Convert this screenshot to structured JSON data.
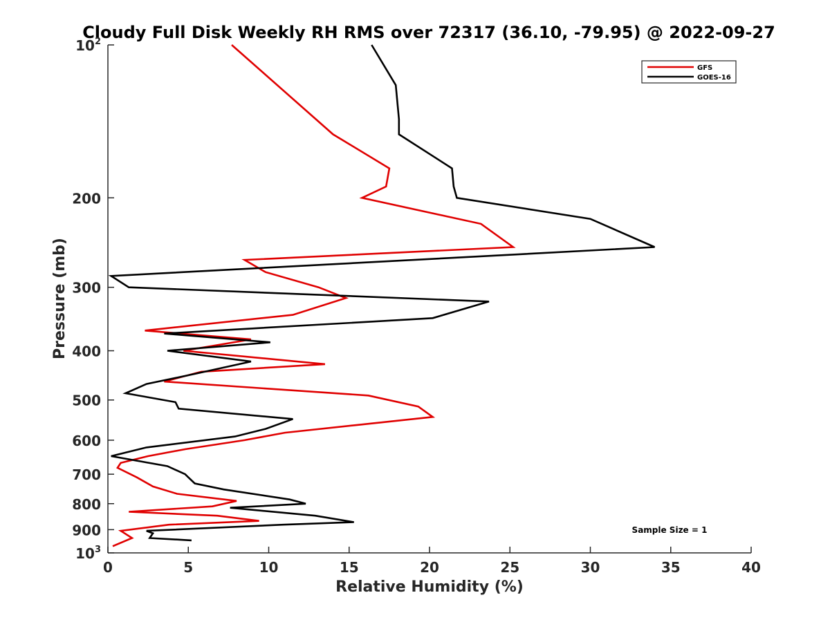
{
  "chart_data": {
    "type": "line",
    "title": "Cloudy Full Disk Weekly RH RMS over 72317 (36.10, -79.95) @ 2022-09-27",
    "xlabel": "Relative Humidity (%)",
    "ylabel": "Pressure (mb)",
    "xlim": [
      0,
      40
    ],
    "ylim": [
      100,
      1000
    ],
    "y_scale": "log",
    "y_reversed": true,
    "x_ticks": [
      "0",
      "5",
      "10",
      "15",
      "20",
      "25",
      "30",
      "35",
      "40"
    ],
    "y_ticks": [
      {
        "value": 100,
        "base": "10",
        "exp": "2"
      },
      {
        "value": 200,
        "label": "200"
      },
      {
        "value": 300,
        "label": "300"
      },
      {
        "value": 400,
        "label": "400"
      },
      {
        "value": 500,
        "label": "500"
      },
      {
        "value": 600,
        "label": "600"
      },
      {
        "value": 700,
        "label": "700"
      },
      {
        "value": 800,
        "label": "800"
      },
      {
        "value": 900,
        "label": "900"
      },
      {
        "value": 1000,
        "base": "10",
        "exp": "3"
      }
    ],
    "grid": false,
    "legend_position": "top-right",
    "annotation": "Sample Size = 1",
    "series": [
      {
        "name": "GFS",
        "color": "#e00000",
        "points": [
          [
            7.7,
            100
          ],
          [
            14.0,
            150
          ],
          [
            17.5,
            175
          ],
          [
            17.3,
            190
          ],
          [
            15.8,
            200
          ],
          [
            23.2,
            225
          ],
          [
            25.2,
            250
          ],
          [
            8.5,
            265
          ],
          [
            9.8,
            280
          ],
          [
            13.1,
            300
          ],
          [
            14.8,
            315
          ],
          [
            11.5,
            340
          ],
          [
            2.3,
            365
          ],
          [
            8.9,
            380
          ],
          [
            4.7,
            400
          ],
          [
            13.5,
            425
          ],
          [
            5.8,
            440
          ],
          [
            3.5,
            460
          ],
          [
            16.2,
            490
          ],
          [
            19.3,
            515
          ],
          [
            20.2,
            540
          ],
          [
            15.5,
            560
          ],
          [
            11.0,
            580
          ],
          [
            8.5,
            600
          ],
          [
            4.8,
            625
          ],
          [
            2.5,
            645
          ],
          [
            0.8,
            665
          ],
          [
            0.6,
            680
          ],
          [
            1.8,
            710
          ],
          [
            2.8,
            740
          ],
          [
            4.3,
            765
          ],
          [
            8.0,
            790
          ],
          [
            6.5,
            810
          ],
          [
            1.3,
            830
          ],
          [
            6.8,
            845
          ],
          [
            9.4,
            865
          ],
          [
            3.8,
            880
          ],
          [
            0.8,
            905
          ],
          [
            1.5,
            935
          ],
          [
            0.3,
            970
          ]
        ]
      },
      {
        "name": "GOES-16",
        "color": "#000000",
        "points": [
          [
            16.4,
            100
          ],
          [
            17.9,
            120
          ],
          [
            18.1,
            140
          ],
          [
            18.1,
            150
          ],
          [
            21.4,
            175
          ],
          [
            21.5,
            190
          ],
          [
            21.7,
            200
          ],
          [
            30.0,
            220
          ],
          [
            34.0,
            250
          ],
          [
            0.2,
            285
          ],
          [
            1.3,
            300
          ],
          [
            23.7,
            320
          ],
          [
            20.2,
            345
          ],
          [
            3.5,
            370
          ],
          [
            10.1,
            385
          ],
          [
            3.7,
            400
          ],
          [
            8.9,
            420
          ],
          [
            5.3,
            445
          ],
          [
            2.4,
            465
          ],
          [
            1.1,
            485
          ],
          [
            4.2,
            505
          ],
          [
            4.4,
            520
          ],
          [
            11.5,
            545
          ],
          [
            9.8,
            570
          ],
          [
            7.9,
            590
          ],
          [
            2.4,
            620
          ],
          [
            0.2,
            645
          ],
          [
            3.7,
            675
          ],
          [
            4.8,
            700
          ],
          [
            5.0,
            710
          ],
          [
            5.4,
            730
          ],
          [
            7.2,
            750
          ],
          [
            11.3,
            785
          ],
          [
            12.3,
            800
          ],
          [
            7.6,
            815
          ],
          [
            12.9,
            845
          ],
          [
            15.3,
            870
          ],
          [
            10.9,
            880
          ],
          [
            2.4,
            905
          ],
          [
            2.8,
            915
          ],
          [
            2.6,
            935
          ],
          [
            5.2,
            945
          ]
        ]
      }
    ]
  }
}
